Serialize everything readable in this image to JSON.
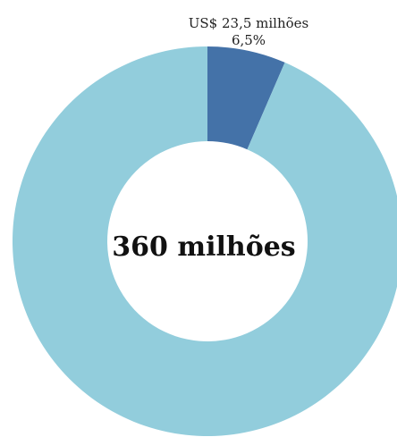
{
  "chart_data": {
    "type": "pie",
    "donut": true,
    "categories": [
      "US$ 23,5 milhões",
      ""
    ],
    "values": [
      6.5,
      93.5
    ],
    "unit": "%",
    "colors": [
      "#4472A8",
      "#92CDDC"
    ],
    "data_labels": [
      {
        "text": "US$ 23,5 milhões",
        "percent": "6,5%"
      }
    ],
    "center_text": "360 milhões"
  }
}
